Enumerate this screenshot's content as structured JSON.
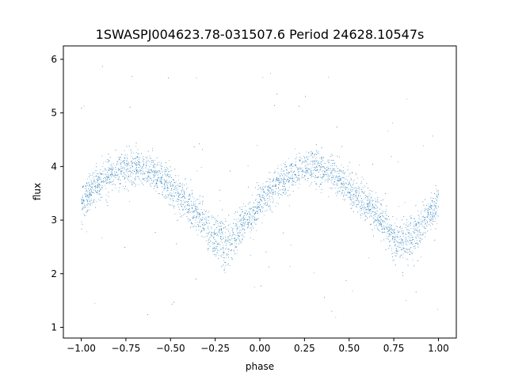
{
  "chart_data": {
    "type": "scatter",
    "title": "1SWASPJ004623.78-031507.6 Period 24628.10547s",
    "xlabel": "phase",
    "ylabel": "flux",
    "xlim": [
      -1.1,
      1.1
    ],
    "ylim": [
      0.8,
      6.25
    ],
    "x_ticks": [
      -1.0,
      -0.75,
      -0.5,
      -0.25,
      0.0,
      0.25,
      0.5,
      0.75,
      1.0
    ],
    "x_tick_labels": [
      "−1.00",
      "−0.75",
      "−0.50",
      "−0.25",
      "0.00",
      "0.25",
      "0.50",
      "0.75",
      "1.00"
    ],
    "y_ticks": [
      1,
      2,
      3,
      4,
      5,
      6
    ],
    "y_tick_labels": [
      "1",
      "2",
      "3",
      "4",
      "5",
      "6"
    ],
    "grid": false,
    "point_color": "#1f77b4",
    "series": [
      {
        "trend_x": [
          -1.0,
          -0.9,
          -0.8,
          -0.7,
          -0.6,
          -0.5,
          -0.4,
          -0.3,
          -0.25,
          -0.2,
          -0.15,
          -0.1,
          -0.05,
          0.0,
          0.1,
          0.2,
          0.3,
          0.4,
          0.5,
          0.6,
          0.7,
          0.75,
          0.8,
          0.85,
          0.9,
          0.95,
          1.0
        ],
        "trend_upper": [
          3.3,
          3.7,
          3.9,
          4.0,
          3.9,
          3.6,
          3.3,
          2.9,
          2.75,
          2.7,
          2.75,
          2.95,
          3.1,
          3.3,
          3.7,
          3.9,
          4.0,
          3.9,
          3.6,
          3.3,
          2.9,
          2.75,
          2.7,
          2.75,
          2.95,
          3.1,
          3.3
        ],
        "trend_lower": [
          3.3,
          3.7,
          3.9,
          4.0,
          3.9,
          3.6,
          3.3,
          2.9,
          2.6,
          2.45,
          2.5,
          2.8,
          3.1,
          3.3,
          3.7,
          3.9,
          4.0,
          3.9,
          3.6,
          3.3,
          2.9,
          2.6,
          2.45,
          2.5,
          2.8,
          3.1,
          3.3
        ],
        "scatter_sd": 0.17,
        "n_points": 5000
      }
    ]
  }
}
